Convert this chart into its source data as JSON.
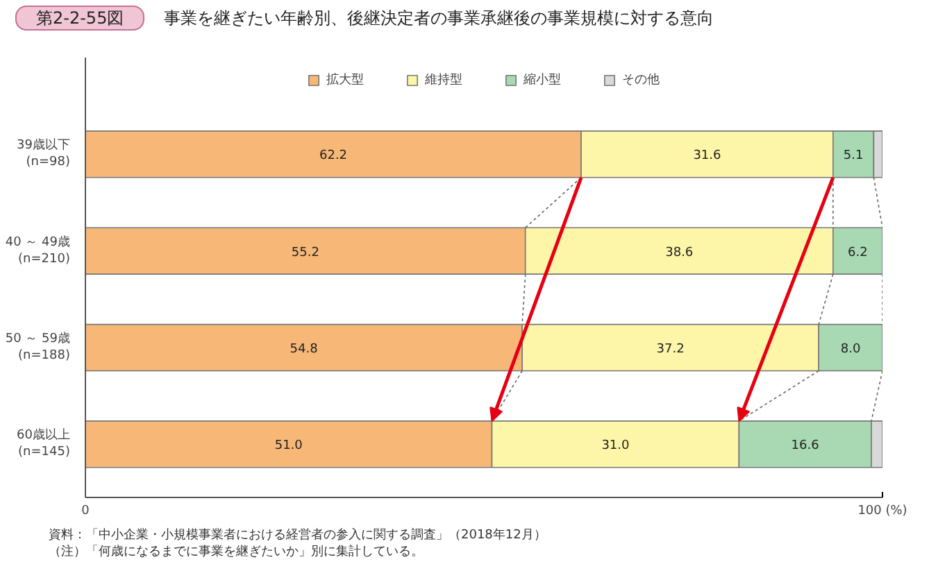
{
  "chart_data": {
    "type": "bar",
    "orientation": "horizontal",
    "stacked": true,
    "title": "事業を継ぎたい年齢別、後継決定者の事業承継後の事業規模に対する意向",
    "subtitle": "第2-2-55図",
    "categories": [
      "39歳以下\n(n=98)",
      "40 ～ 49歳\n(n=210)",
      "50 ～ 59歳\n(n=188)",
      "60歳以上\n(n=145)"
    ],
    "series": [
      {
        "name": "拡大型",
        "color": "#f7b877",
        "values": [
          62.2,
          55.2,
          54.8,
          51.0
        ],
        "value_labels": [
          "62.2",
          "55.2",
          "54.8",
          "51.0"
        ]
      },
      {
        "name": "維持型",
        "color": "#fdf6a8",
        "values": [
          31.6,
          38.6,
          37.2,
          31.0
        ],
        "value_labels": [
          "31.6",
          "38.6",
          "37.2",
          "31.0"
        ]
      },
      {
        "name": "縮小型",
        "color": "#a9d9b3",
        "values": [
          5.1,
          6.2,
          8.0,
          16.6
        ],
        "value_labels": [
          "5.1",
          "6.2",
          "8.0",
          "16.6"
        ]
      },
      {
        "name": "その他",
        "color": "#d9d9d9",
        "values": [
          1.1,
          0,
          0,
          1.4
        ]
      }
    ],
    "xlim": [
      0,
      100
    ],
    "xticks": [
      0,
      {
        "value": 100,
        "label": "100 (%)"
      }
    ],
    "legend": "top",
    "annotations": [
      "資料：「中小企業・小規模事業者における経営者の参入に関する調査」（2018年12月）",
      "（注）「何歳になるまでに事業を継ぎたいか」別に集計している。"
    ]
  }
}
